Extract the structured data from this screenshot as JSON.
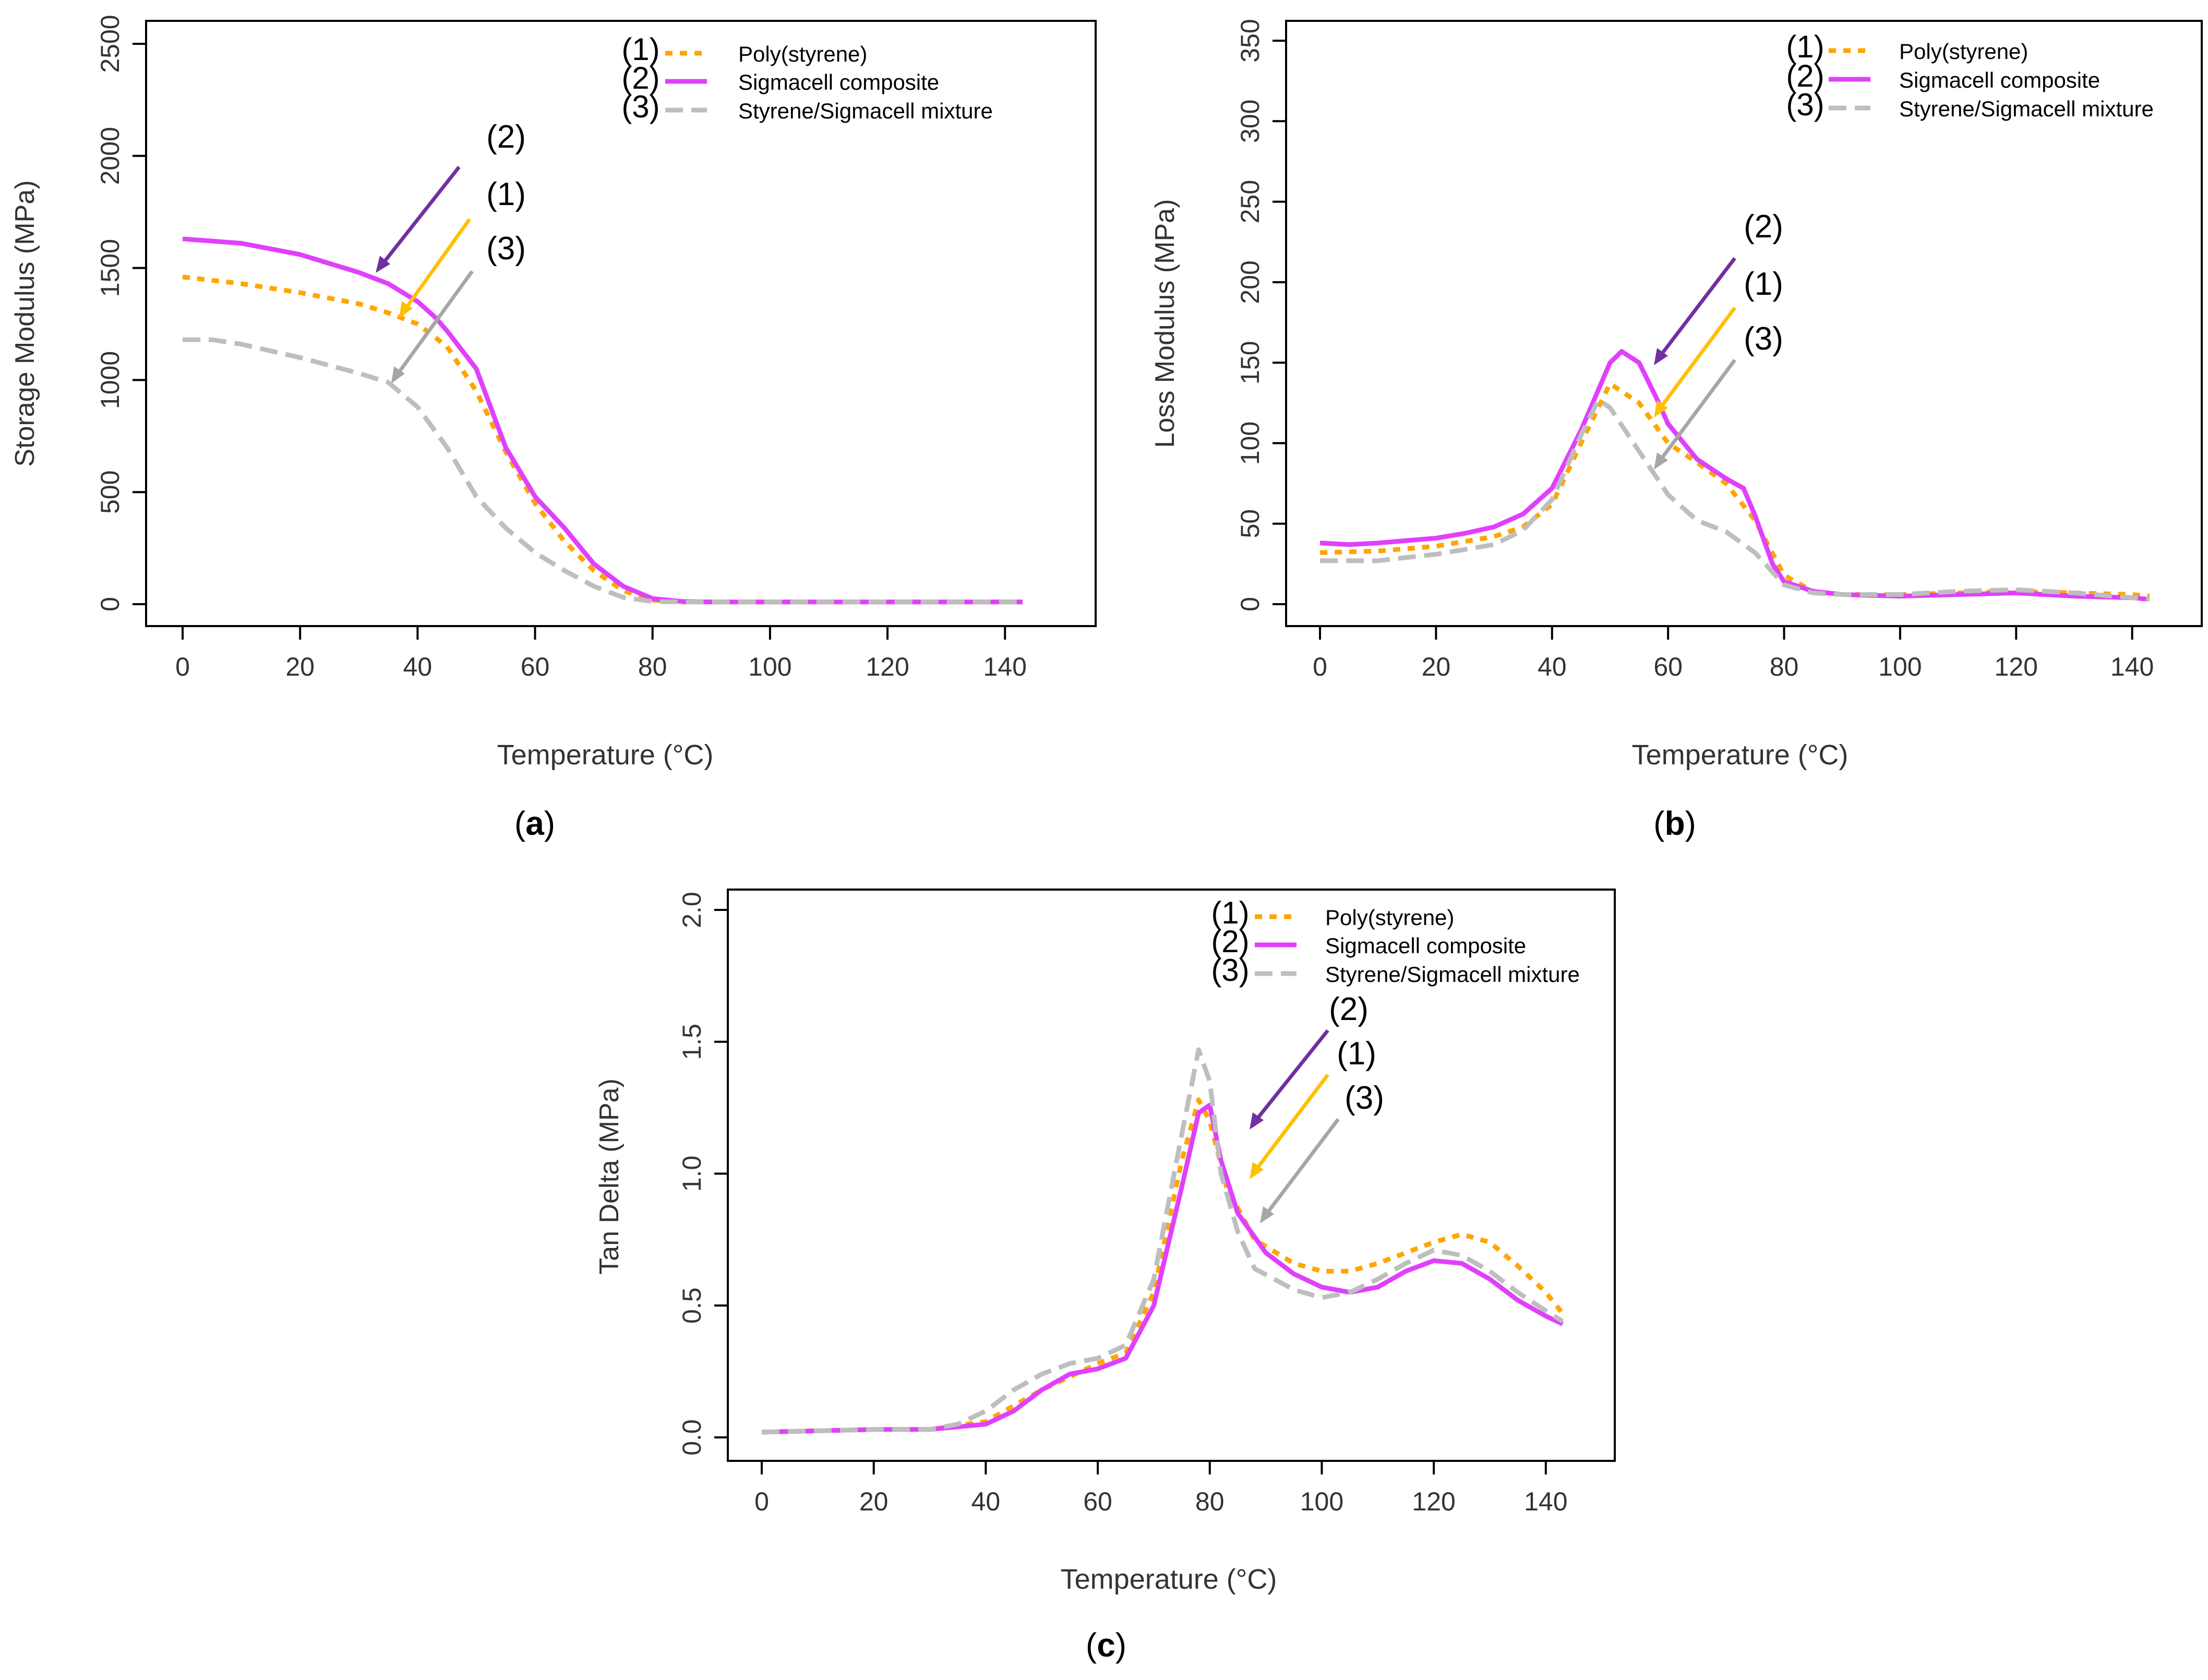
{
  "colors": {
    "polystyrene": "#FFA500",
    "composite": "#E040FB",
    "mixture": "#BEBEBE",
    "arrow2": "#7030A0",
    "arrow1": "#FFC000",
    "arrow3": "#A6A6A6",
    "axis": "#000000"
  },
  "chart_data": [
    {
      "type": "line",
      "panel_label": "a",
      "xlabel": "Temperature (°C)",
      "ylabel": "Storage Modulus (MPa)",
      "xlim": [
        0,
        143
      ],
      "ylim": [
        0,
        2500
      ],
      "xticks": [
        0,
        20,
        40,
        60,
        80,
        100,
        120,
        140
      ],
      "yticks": [
        0,
        500,
        1000,
        1500,
        2000,
        2500
      ],
      "legend_position": "top-right",
      "series": [
        {
          "name": "Poly(styrene)",
          "legend_tag": "(1)",
          "style": "dotted",
          "color_key": "polystyrene",
          "x": [
            0,
            10,
            20,
            30,
            35,
            40,
            45,
            50,
            55,
            60,
            65,
            70,
            75,
            80,
            85,
            90,
            100,
            120,
            140,
            143
          ],
          "y": [
            1460,
            1430,
            1390,
            1340,
            1300,
            1250,
            1150,
            950,
            680,
            450,
            280,
            150,
            60,
            18,
            10,
            10,
            10,
            10,
            10,
            10
          ]
        },
        {
          "name": "Sigmacell composite",
          "legend_tag": "(2)",
          "style": "solid",
          "color_key": "composite",
          "x": [
            0,
            10,
            20,
            30,
            35,
            40,
            43,
            45,
            50,
            55,
            60,
            65,
            70,
            75,
            80,
            85,
            90,
            100,
            120,
            140,
            143
          ],
          "y": [
            1630,
            1610,
            1560,
            1480,
            1430,
            1350,
            1280,
            1220,
            1050,
            700,
            480,
            340,
            180,
            80,
            25,
            12,
            10,
            10,
            10,
            10,
            10
          ]
        },
        {
          "name": "Styrene/Sigmacell mixture",
          "legend_tag": "(3)",
          "style": "dashed",
          "color_key": "mixture",
          "x": [
            0,
            5,
            10,
            20,
            30,
            35,
            40,
            45,
            50,
            55,
            60,
            65,
            70,
            75,
            80,
            85,
            90,
            100,
            120,
            140,
            143
          ],
          "y": [
            1180,
            1180,
            1160,
            1100,
            1030,
            990,
            880,
            700,
            480,
            340,
            230,
            150,
            80,
            30,
            12,
            10,
            10,
            10,
            10,
            10,
            10
          ]
        }
      ],
      "annotations": [
        "(2)",
        "(1)",
        "(3)"
      ]
    },
    {
      "type": "line",
      "panel_label": "b",
      "xlabel": "Temperature (°C)",
      "ylabel": "Loss Modulus (MPa)",
      "xlim": [
        0,
        143
      ],
      "ylim": [
        0,
        350
      ],
      "xticks": [
        0,
        20,
        40,
        60,
        80,
        100,
        120,
        140
      ],
      "yticks": [
        0,
        50,
        100,
        150,
        200,
        250,
        300,
        350
      ],
      "legend_position": "top-right",
      "series": [
        {
          "name": "Poly(styrene)",
          "legend_tag": "(1)",
          "style": "dotted",
          "color_key": "polystyrene",
          "x": [
            0,
            10,
            20,
            30,
            35,
            40,
            45,
            50,
            55,
            60,
            65,
            70,
            75,
            80,
            85,
            90,
            100,
            110,
            120,
            130,
            140,
            143
          ],
          "y": [
            32,
            33,
            36,
            42,
            48,
            62,
            100,
            137,
            125,
            100,
            88,
            75,
            52,
            18,
            8,
            6,
            6,
            7,
            8,
            7,
            6,
            5
          ]
        },
        {
          "name": "Sigmacell composite",
          "legend_tag": "(2)",
          "style": "solid",
          "color_key": "composite",
          "x": [
            0,
            5,
            10,
            20,
            25,
            30,
            35,
            40,
            45,
            50,
            52,
            55,
            58,
            60,
            65,
            70,
            73,
            75,
            78,
            80,
            85,
            90,
            100,
            110,
            120,
            130,
            140,
            143
          ],
          "y": [
            38,
            37,
            38,
            41,
            44,
            48,
            56,
            72,
            108,
            150,
            157,
            150,
            128,
            112,
            90,
            78,
            72,
            55,
            25,
            14,
            8,
            6,
            5,
            6,
            7,
            5,
            4,
            3
          ]
        },
        {
          "name": "Styrene/Sigmacell mixture",
          "legend_tag": "(3)",
          "style": "dashed",
          "color_key": "mixture",
          "x": [
            0,
            10,
            20,
            30,
            35,
            40,
            45,
            48,
            50,
            55,
            60,
            65,
            70,
            75,
            80,
            85,
            90,
            100,
            110,
            120,
            130,
            140,
            143
          ],
          "y": [
            27,
            27,
            31,
            37,
            46,
            65,
            105,
            127,
            122,
            95,
            68,
            52,
            45,
            32,
            12,
            7,
            6,
            6,
            8,
            9,
            7,
            4,
            3
          ]
        }
      ],
      "annotations": [
        "(2)",
        "(1)",
        "(3)"
      ]
    },
    {
      "type": "line",
      "panel_label": "c",
      "xlabel": "Temperature (°C)",
      "ylabel": "Tan Delta (MPa)",
      "xlim": [
        0,
        143
      ],
      "ylim": [
        -0.4,
        2.0
      ],
      "xticks": [
        0,
        20,
        40,
        60,
        80,
        100,
        120,
        140
      ],
      "yticks": [
        0.0,
        0.5,
        1.0,
        1.5,
        2.0
      ],
      "ytick_labels": [
        "0.0",
        "0.5",
        "1.0",
        "1.5",
        "2.0"
      ],
      "legend_position": "top-right",
      "series": [
        {
          "name": "Poly(styrene)",
          "legend_tag": "(1)",
          "style": "dotted",
          "color_key": "polystyrene",
          "x": [
            0,
            20,
            30,
            40,
            50,
            60,
            65,
            70,
            75,
            78,
            80,
            83,
            88,
            95,
            100,
            105,
            110,
            115,
            120,
            125,
            130,
            135,
            140,
            143
          ],
          "y": [
            0.02,
            0.03,
            0.03,
            0.06,
            0.18,
            0.28,
            0.32,
            0.55,
            1.05,
            1.28,
            1.2,
            0.95,
            0.75,
            0.66,
            0.63,
            0.63,
            0.66,
            0.7,
            0.74,
            0.77,
            0.74,
            0.65,
            0.55,
            0.47
          ]
        },
        {
          "name": "Sigmacell composite",
          "legend_tag": "(2)",
          "style": "solid",
          "color_key": "composite",
          "x": [
            0,
            20,
            30,
            40,
            45,
            50,
            55,
            60,
            65,
            70,
            75,
            78,
            80,
            82,
            85,
            90,
            95,
            100,
            105,
            110,
            115,
            120,
            125,
            130,
            135,
            140,
            143
          ],
          "y": [
            0.02,
            0.03,
            0.03,
            0.05,
            0.1,
            0.18,
            0.24,
            0.26,
            0.3,
            0.5,
            0.95,
            1.23,
            1.26,
            1.05,
            0.85,
            0.7,
            0.62,
            0.57,
            0.55,
            0.57,
            0.63,
            0.67,
            0.66,
            0.6,
            0.52,
            0.46,
            0.43
          ]
        },
        {
          "name": "Styrene/Sigmacell mixture",
          "legend_tag": "(3)",
          "style": "dashed",
          "color_key": "mixture",
          "x": [
            0,
            20,
            30,
            35,
            40,
            45,
            50,
            55,
            60,
            65,
            70,
            75,
            78,
            80,
            82,
            85,
            88,
            95,
            100,
            105,
            110,
            115,
            120,
            125,
            130,
            135,
            140,
            143
          ],
          "y": [
            0.02,
            0.03,
            0.03,
            0.05,
            0.1,
            0.18,
            0.24,
            0.28,
            0.3,
            0.35,
            0.6,
            1.15,
            1.47,
            1.35,
            1.0,
            0.78,
            0.64,
            0.56,
            0.53,
            0.55,
            0.6,
            0.66,
            0.71,
            0.69,
            0.63,
            0.55,
            0.48,
            0.44
          ]
        }
      ],
      "annotations": [
        "(2)",
        "(1)",
        "(3)"
      ]
    }
  ]
}
